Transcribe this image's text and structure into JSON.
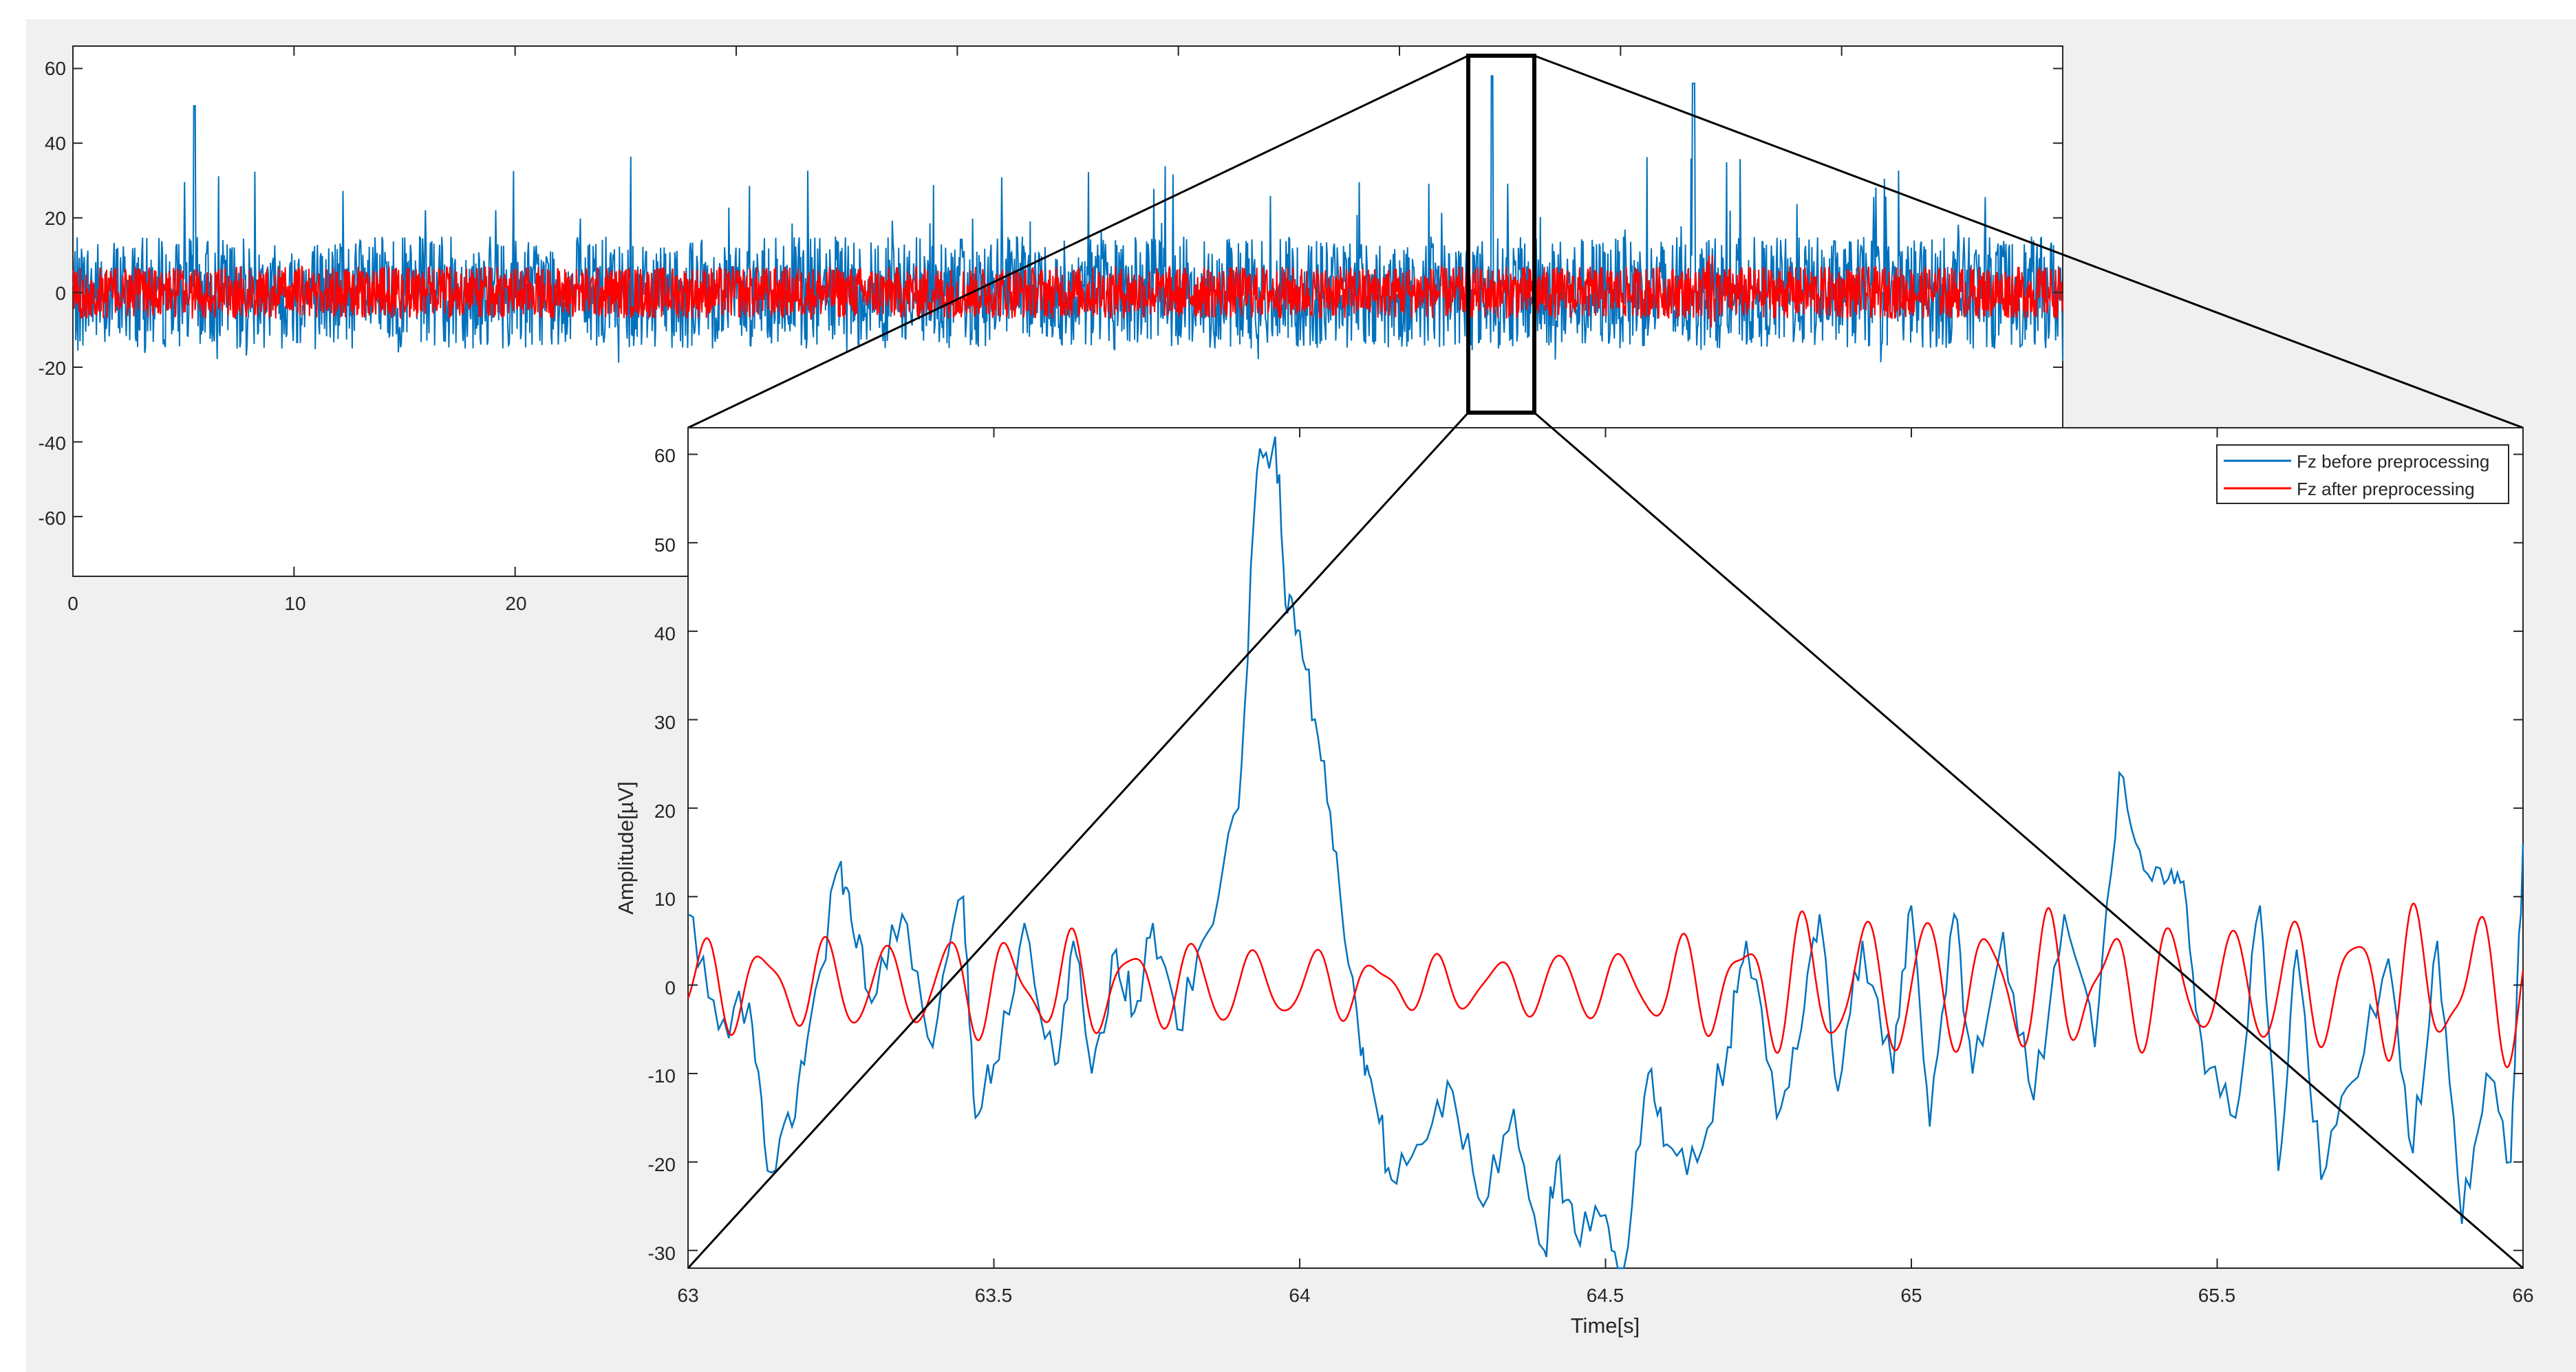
{
  "chart_data": [
    {
      "type": "line",
      "title": "",
      "xlabel": "",
      "ylabel": "",
      "xlim": [
        0,
        90
      ],
      "ylim": [
        -76,
        66
      ],
      "x_ticks": [
        "0",
        "10",
        "20"
      ],
      "y_ticks": [
        "60",
        "40",
        "20",
        "0",
        "-20",
        "-40",
        "-60"
      ],
      "grid": false,
      "series": [
        {
          "color": "#0072bd",
          "approx_range": [
            -38,
            58
          ],
          "typical_amplitude": 15
        },
        {
          "color": "#ff0000",
          "approx_range": [
            -10,
            10
          ],
          "typical_amplitude": 7
        }
      ],
      "zoom_window": {
        "x": [
          63,
          66
        ],
        "y": [
          -32,
          63
        ]
      }
    },
    {
      "type": "line",
      "title": "",
      "xlabel": "Time[s]",
      "ylabel": "Amplitude[µV]",
      "xlim": [
        63,
        66
      ],
      "ylim": [
        -32,
        63
      ],
      "x_ticks": [
        "63",
        "63.5",
        "64",
        "64.5",
        "65",
        "65.5",
        "66"
      ],
      "y_ticks": [
        "60",
        "50",
        "40",
        "30",
        "20",
        "10",
        "0",
        "-10",
        "-20",
        "-30"
      ],
      "legend_position": "top-right",
      "series": [
        {
          "name": "Fz before preprocessing",
          "color": "#0072bd",
          "x": [
            63.0,
            63.05,
            63.1,
            63.13,
            63.17,
            63.2,
            63.25,
            63.27,
            63.3,
            63.35,
            63.4,
            63.45,
            63.47,
            63.5,
            63.55,
            63.6,
            63.63,
            63.66,
            63.7,
            63.73,
            63.76,
            63.8,
            63.85,
            63.9,
            63.93,
            63.96,
            63.98,
            64.0,
            64.03,
            64.06,
            64.1,
            64.12,
            64.15,
            64.2,
            64.25,
            64.3,
            64.35,
            64.4,
            64.42,
            64.45,
            64.5,
            64.53,
            64.57,
            64.6,
            64.65,
            64.7,
            64.73,
            64.78,
            64.82,
            64.85,
            64.88,
            64.92,
            64.97,
            65.0,
            65.03,
            65.07,
            65.1,
            65.15,
            65.2,
            65.25,
            65.3,
            65.34,
            65.38,
            65.42,
            65.45,
            65.48,
            65.53,
            65.57,
            65.6,
            65.63,
            65.67,
            65.72,
            65.78,
            65.82,
            65.86,
            65.9,
            65.94,
            65.98,
            66.0
          ],
          "y": [
            8,
            -5,
            -2,
            -21,
            -16,
            -4,
            14,
            6,
            -2,
            8,
            -7,
            10,
            -15,
            -9,
            7,
            -9,
            5,
            -10,
            4,
            -3,
            7,
            -5,
            6,
            20,
            58,
            62,
            42,
            40,
            28,
            15,
            -8,
            -12,
            -22,
            -18,
            -12,
            -25,
            -14,
            -30,
            -20,
            -28,
            -26,
            -32,
            -10,
            -18,
            -20,
            -7,
            5,
            -15,
            -5,
            8,
            -12,
            5,
            -10,
            9,
            -16,
            8,
            -10,
            6,
            -13,
            8,
            -7,
            24,
            13,
            12,
            9,
            -10,
            -15,
            9,
            -21,
            4,
            -22,
            -11,
            3,
            -19,
            5,
            -27,
            -10,
            -20,
            16
          ]
        },
        {
          "name": "Fz after preprocessing",
          "color": "#ff0000",
          "envelope": [
            {
              "x": 63.0,
              "amplitude": 5
            },
            {
              "x": 63.5,
              "amplitude": 6
            },
            {
              "x": 63.9,
              "amplitude": 5
            },
            {
              "x": 64.2,
              "amplitude": 3
            },
            {
              "x": 64.6,
              "amplitude": 5
            },
            {
              "x": 64.9,
              "amplitude": 9
            },
            {
              "x": 65.4,
              "amplitude": 7
            },
            {
              "x": 66.0,
              "amplitude": 9
            }
          ],
          "approx_frequency_hz": 10
        }
      ]
    }
  ]
}
